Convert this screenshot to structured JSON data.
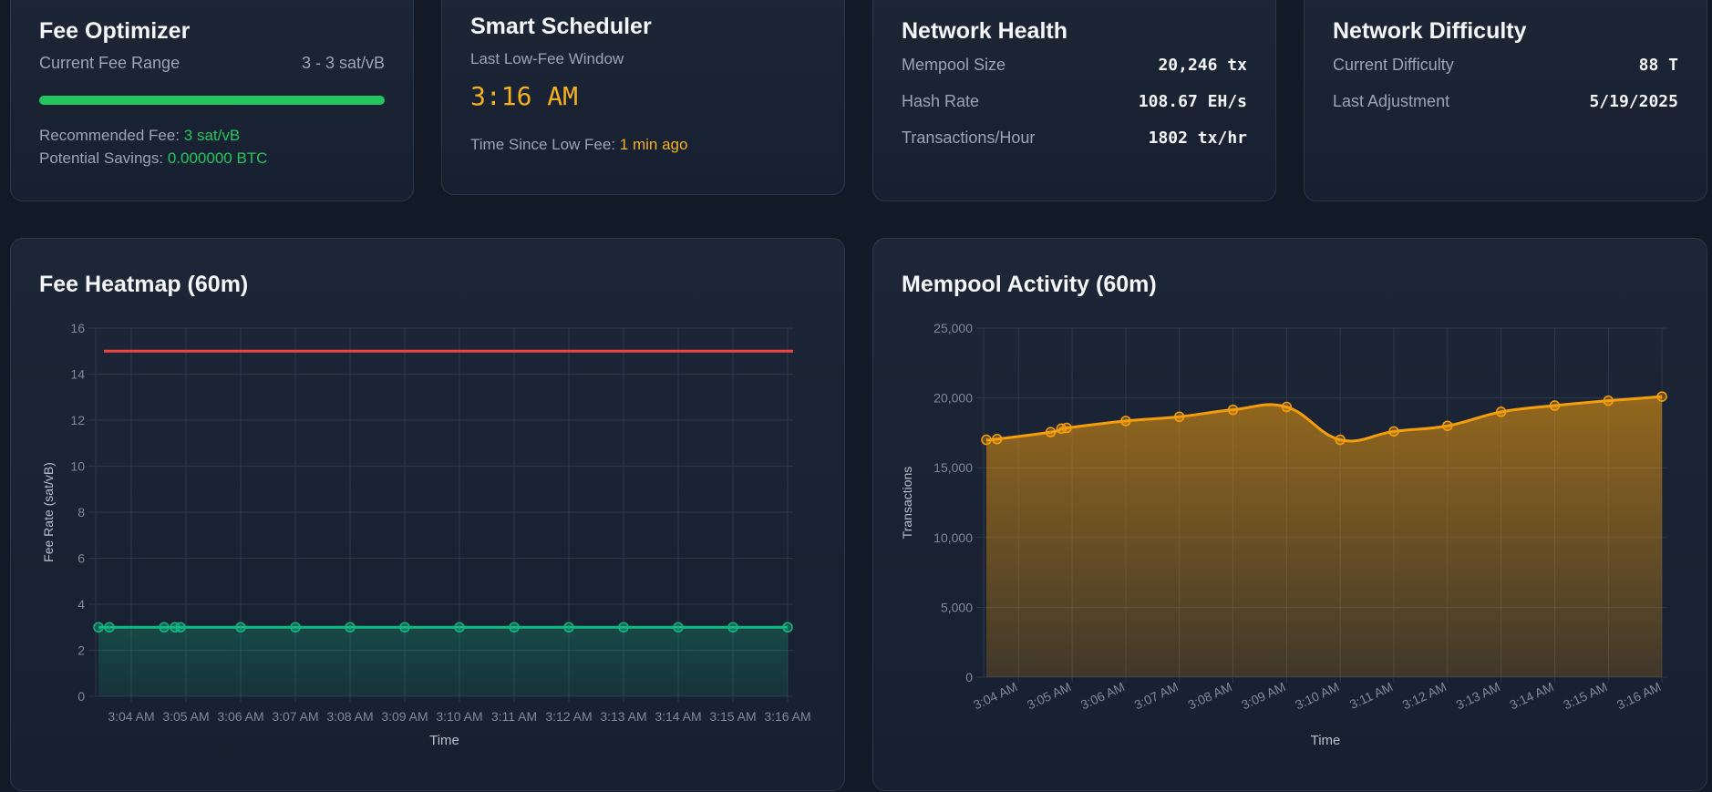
{
  "fee_optimizer": {
    "title": "Fee Optimizer",
    "range_label": "Current Fee Range",
    "range_value": "3 - 3 sat/vB",
    "range_fill_fraction": 1.0,
    "recommended_label": "Recommended Fee:",
    "recommended_value": "3 sat/vB",
    "savings_label": "Potential Savings:",
    "savings_value": "0.000000 BTC",
    "accent": "#22c55e"
  },
  "smart_scheduler": {
    "title": "Smart Scheduler",
    "window_label": "Last Low-Fee Window",
    "window_time": "3:16 AM",
    "since_label": "Time Since Low Fee:",
    "since_value": "1 min ago",
    "accent": "#f5b01a"
  },
  "network_health": {
    "title": "Network Health",
    "rows": [
      {
        "label": "Mempool Size",
        "value": "20,246 tx"
      },
      {
        "label": "Hash Rate",
        "value": "108.67 EH/s"
      },
      {
        "label": "Transactions/Hour",
        "value": "1802 tx/hr"
      }
    ]
  },
  "network_difficulty": {
    "title": "Network Difficulty",
    "rows": [
      {
        "label": "Current Difficulty",
        "value": "88 T"
      },
      {
        "label": "Last Adjustment",
        "value": "5/19/2025"
      }
    ]
  },
  "fee_heatmap": {
    "title": "Fee Heatmap (60m)",
    "chart_data": {
      "type": "line",
      "title": "",
      "xlabel": "Time",
      "ylabel": "Fee Rate (sat/vB)",
      "x_ticks": [
        "3:04 AM",
        "3:05 AM",
        "3:06 AM",
        "3:07 AM",
        "3:08 AM",
        "3:09 AM",
        "3:10 AM",
        "3:11 AM",
        "3:12 AM",
        "3:13 AM",
        "3:14 AM",
        "3:15 AM",
        "3:16 AM"
      ],
      "ylim": [
        0,
        16
      ],
      "y_ticks": [
        0,
        2,
        4,
        6,
        8,
        10,
        12,
        14,
        16
      ],
      "x_range": [
        "3:03.4",
        "3:16.1"
      ],
      "series": [
        {
          "x": [
            "3:03.4",
            "3:03.6",
            "3:04.6",
            "3:04.8",
            "3:04.9",
            "3:06",
            "3:07",
            "3:08",
            "3:09",
            "3:10",
            "3:11",
            "3:12",
            "3:13",
            "3:14",
            "3:15",
            "3:16"
          ],
          "x_min": [
            3.4,
            3.6,
            4.6,
            4.8,
            4.9,
            6,
            7,
            8,
            9,
            10,
            11,
            12,
            13,
            14,
            15,
            16
          ],
          "values": [
            3,
            3,
            3,
            3,
            3,
            3,
            3,
            3,
            3,
            3,
            3,
            3,
            3,
            3,
            3,
            3
          ],
          "color": "#10b981",
          "fill": true
        },
        {
          "x_min": [
            3.5,
            16.1
          ],
          "values": [
            15,
            15
          ],
          "color": "#ef4444",
          "fill": false
        }
      ],
      "grid": true
    }
  },
  "mempool_activity": {
    "title": "Mempool Activity (60m)",
    "chart_data": {
      "type": "area",
      "title": "",
      "xlabel": "Time",
      "ylabel": "Transactions",
      "x_ticks": [
        "3:04 AM",
        "3:05 AM",
        "3:06 AM",
        "3:07 AM",
        "3:08 AM",
        "3:09 AM",
        "3:10 AM",
        "3:11 AM",
        "3:12 AM",
        "3:13 AM",
        "3:14 AM",
        "3:15 AM",
        "3:16 AM"
      ],
      "ylim": [
        0,
        25000
      ],
      "y_ticks": [
        "0",
        "5,000",
        "10,000",
        "15,000",
        "20,000",
        "25,000"
      ],
      "y_tick_values": [
        0,
        5000,
        10000,
        15000,
        20000,
        25000
      ],
      "series": [
        {
          "x_min": [
            3.4,
            3.6,
            4.6,
            4.8,
            4.9,
            6,
            7,
            8,
            9,
            10,
            11,
            12,
            13,
            14,
            15,
            16
          ],
          "values": [
            17000,
            17050,
            17550,
            17800,
            17850,
            18350,
            18650,
            19150,
            19350,
            17000,
            17600,
            18000,
            19000,
            19450,
            19800,
            20100
          ],
          "color": "#f59e0b",
          "fill": true
        }
      ],
      "grid": true
    }
  }
}
